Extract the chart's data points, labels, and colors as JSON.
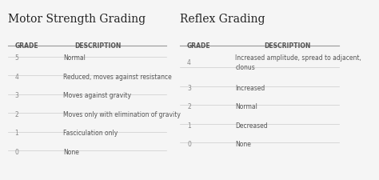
{
  "bg_color": "#f5f5f5",
  "title_left": "Motor Strength Grading",
  "title_right": "Reflex Grading",
  "title_fontsize": 10,
  "title_color": "#222222",
  "header_label": "GRADE",
  "header_desc": "DESCRIPTION",
  "header_fontsize": 5.5,
  "header_color": "#555555",
  "row_fontsize": 5.5,
  "grade_color": "#888888",
  "desc_color": "#555555",
  "line_color": "#cccccc",
  "header_line_color": "#999999",
  "motor_rows": [
    {
      "grade": "5",
      "desc": "Normal"
    },
    {
      "grade": "4",
      "desc": "Reduced, moves against resistance"
    },
    {
      "grade": "3",
      "desc": "Moves against gravity"
    },
    {
      "grade": "2",
      "desc": "Moves only with elimination of gravity"
    },
    {
      "grade": "1",
      "desc": "Fasciculation only"
    },
    {
      "grade": "0",
      "desc": "None"
    }
  ],
  "reflex_rows": [
    {
      "grade": "4",
      "desc": "Increased amplitude, spread to adjacent,\nclonus"
    },
    {
      "grade": "3",
      "desc": "Increased"
    },
    {
      "grade": "2",
      "desc": "Normal"
    },
    {
      "grade": "1",
      "desc": "Decreased"
    },
    {
      "grade": "0",
      "desc": "None"
    }
  ]
}
